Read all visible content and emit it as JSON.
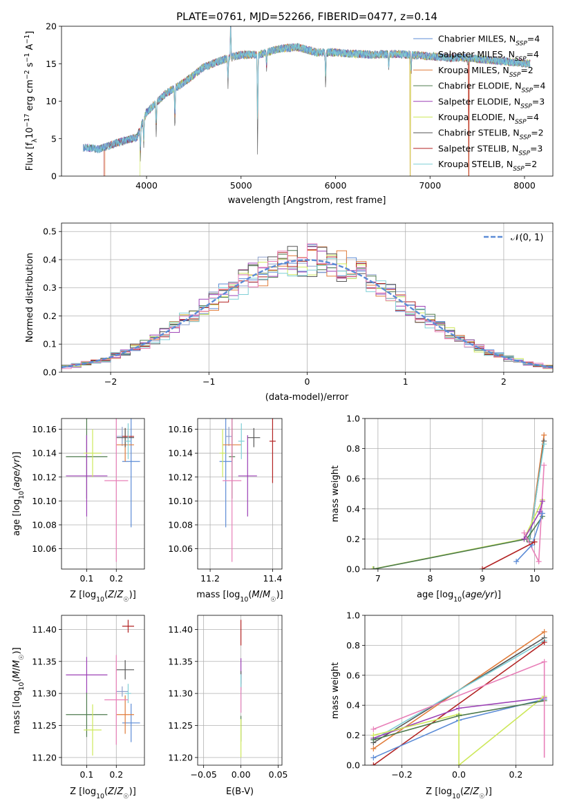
{
  "figure": {
    "title": "PLATE=0761, MJD=52266, FIBERID=0477, z=0.14"
  },
  "colors": {
    "Chabrier MILES": "#5b8bd6",
    "Salpeter MILES": "#8da0cb",
    "Kroupa MILES": "#e07b39",
    "Chabrier ELODIE": "#4d7a4d",
    "Salpeter ELODIE": "#9b3fb5",
    "Kroupa ELODIE": "#cde85a",
    "Chabrier STELIB": "#555555",
    "Salpeter STELIB": "#b22222",
    "Kroupa STELIB": "#7ecfd6",
    "pink": "#e87fb8",
    "normal": "#5b8bd6"
  },
  "chart_data": [
    {
      "id": "spectrum",
      "type": "line",
      "title": "PLATE=0761, MJD=52266, FIBERID=0477, z=0.14",
      "xlabel": "wavelength [Angstrom, rest frame]",
      "ylabel": "Flux [f_λ 10^-17 erg cm^-2 s^-1 A^-1]",
      "xlim": [
        3100,
        8300
      ],
      "ylim": [
        0,
        20
      ],
      "xticks": [
        4000,
        5000,
        6000,
        7000,
        8000
      ],
      "yticks": [
        0,
        5,
        10,
        15,
        20
      ],
      "legend_position": "upper-right",
      "series": [
        {
          "name": "Chabrier MILES, N_SSP=4",
          "legend_main": "Chabrier MILES, N",
          "legend_sub": "SSP",
          "legend_tail": "=4"
        },
        {
          "name": "Salpeter MILES, N_SSP=4",
          "legend_main": "Salpeter MILES, N",
          "legend_sub": "SSP",
          "legend_tail": "=4"
        },
        {
          "name": "Kroupa MILES, N_SSP=2",
          "legend_main": "Kroupa MILES, N",
          "legend_sub": "SSP",
          "legend_tail": "=2"
        },
        {
          "name": "Chabrier ELODIE, N_SSP=4",
          "legend_main": "Chabrier ELODIE, N",
          "legend_sub": "SSP",
          "legend_tail": "=4"
        },
        {
          "name": "Salpeter ELODIE, N_SSP=3",
          "legend_main": "Salpeter ELODIE, N",
          "legend_sub": "SSP",
          "legend_tail": "=3"
        },
        {
          "name": "Kroupa ELODIE, N_SSP=4",
          "legend_main": "Kroupa ELODIE, N",
          "legend_sub": "SSP",
          "legend_tail": "=4"
        },
        {
          "name": "Chabrier STELIB, N_SSP=2",
          "legend_main": "Chabrier STELIB, N",
          "legend_sub": "SSP",
          "legend_tail": "=2"
        },
        {
          "name": "Salpeter STELIB, N_SSP=3",
          "legend_main": "Salpeter STELIB, N",
          "legend_sub": "SSP",
          "legend_tail": "=3"
        },
        {
          "name": "Kroupa STELIB, N_SSP=2",
          "legend_main": "Kroupa STELIB, N",
          "legend_sub": "SSP",
          "legend_tail": "=2"
        }
      ],
      "continuum": [
        [
          3330,
          3.8
        ],
        [
          3500,
          3.6
        ],
        [
          3700,
          4.5
        ],
        [
          3900,
          5.2
        ],
        [
          4000,
          8.5
        ],
        [
          4200,
          11.0
        ],
        [
          4400,
          12.5
        ],
        [
          4600,
          14.5
        ],
        [
          4800,
          15.5
        ],
        [
          5000,
          16.2
        ],
        [
          5200,
          16.2
        ],
        [
          5400,
          17.0
        ],
        [
          5600,
          17.2
        ],
        [
          5800,
          16.5
        ],
        [
          6000,
          16.5
        ],
        [
          6200,
          16.3
        ],
        [
          6400,
          16.2
        ],
        [
          6600,
          16.3
        ],
        [
          6800,
          16.2
        ],
        [
          7000,
          16.0
        ],
        [
          7200,
          15.8
        ],
        [
          7400,
          15.8
        ],
        [
          7600,
          15.5
        ],
        [
          7800,
          15.3
        ],
        [
          8050,
          15.0
        ]
      ],
      "absorption_features": [
        [
          3935,
          3.0
        ],
        [
          3970,
          2.5
        ],
        [
          4102,
          3.0
        ],
        [
          4300,
          3.5
        ],
        [
          4861,
          2.5
        ],
        [
          4890,
          -4.0
        ],
        [
          5175,
          8.5
        ],
        [
          5270,
          1.5
        ],
        [
          5895,
          3.0
        ],
        [
          6563,
          1.5
        ],
        [
          6800,
          2.0
        ],
        [
          7400,
          0.5
        ]
      ],
      "range_start": {
        "Kroupa MILES": 3560,
        "Kroupa ELODIE": 3930,
        "Salpeter STELIB": 3550
      },
      "dropouts": [
        [
          6790,
          0
        ],
        [
          7410,
          0
        ]
      ]
    },
    {
      "id": "residuals",
      "type": "histogram",
      "xlabel": "(data-model)/error",
      "ylabel": "Normed distribution",
      "xlim": [
        -2.5,
        2.5
      ],
      "ylim": [
        0,
        0.53
      ],
      "xticks": [
        -2,
        -1,
        0,
        1,
        2
      ],
      "yticks": [
        0.0,
        0.1,
        0.2,
        0.3,
        0.4,
        0.5
      ],
      "legend_label": "𝒩(0, 1)",
      "bin_width": 0.1,
      "series_colors": [
        "#5b8bd6",
        "#8da0cb",
        "#e07b39",
        "#4d7a4d",
        "#9b3fb5",
        "#cde85a",
        "#555555",
        "#b22222",
        "#7ecfd6",
        "#e87fb8"
      ],
      "normal_curve": {
        "mean": 0,
        "sigma": 1
      }
    },
    {
      "id": "age-vs-Z",
      "type": "scatter",
      "xlabel": "Z [log10(Z/Z☉)]",
      "ylabel": "age  [log10(age/yr)]",
      "xlim": [
        0.015,
        0.295
      ],
      "ylim": [
        10.043,
        10.169
      ],
      "xticks": [
        0.1,
        0.2
      ],
      "yticks": [
        10.06,
        10.08,
        10.1,
        10.12,
        10.14,
        10.16
      ],
      "points": [
        {
          "c": "Chabrier MILES",
          "x": 0.25,
          "y": 10.133,
          "ex": 0.03,
          "ey": 0.055
        },
        {
          "c": "Salpeter MILES",
          "x": 0.22,
          "y": 10.154,
          "ex": 0.02,
          "ey": 0.008
        },
        {
          "c": "Kroupa MILES",
          "x": 0.23,
          "y": 10.147,
          "ex": 0.03,
          "ey": 0.014
        },
        {
          "c": "Chabrier ELODIE",
          "x": 0.1,
          "y": 10.137,
          "ex": 0.07,
          "ey": 0.035
        },
        {
          "c": "Salpeter ELODIE",
          "x": 0.1,
          "y": 10.121,
          "ex": 0.07,
          "ey": 0.034
        },
        {
          "c": "Kroupa ELODIE",
          "x": 0.12,
          "y": 10.14,
          "ex": 0.03,
          "ey": 0.02
        },
        {
          "c": "Chabrier STELIB",
          "x": 0.23,
          "y": 10.153,
          "ex": 0.03,
          "ey": 0.008
        },
        {
          "c": "Salpeter STELIB",
          "x": 0.24,
          "y": 10.154,
          "ex": 0.02,
          "ey": 0.005
        },
        {
          "c": "Kroupa STELIB",
          "x": 0.24,
          "y": 10.15,
          "ex": 0.01,
          "ey": 0.015
        },
        {
          "c": "pink",
          "x": 0.2,
          "y": 10.117,
          "ex": 0.04,
          "ey": 0.068
        }
      ]
    },
    {
      "id": "age-vs-mass",
      "type": "scatter",
      "xlabel": "mass [log10(M/M☉)]",
      "ylabel": "",
      "xlim": [
        11.16,
        11.43
      ],
      "ylim": [
        10.043,
        10.169
      ],
      "xticks": [
        11.2,
        11.4
      ],
      "yticks": [
        10.06,
        10.08,
        10.1,
        10.12,
        10.14,
        10.16
      ],
      "points": [
        {
          "c": "Chabrier MILES",
          "x": 11.25,
          "y": 10.133,
          "ex": 0.02,
          "ey": 0.055
        },
        {
          "c": "Salpeter MILES",
          "x": 11.26,
          "y": 10.154,
          "ex": 0.01,
          "ey": 0.008
        },
        {
          "c": "Kroupa MILES",
          "x": 11.27,
          "y": 10.147,
          "ex": 0.03,
          "ey": 0.014
        },
        {
          "c": "Chabrier ELODIE",
          "x": 11.27,
          "y": 10.137,
          "ex": 0.01,
          "ey": 0.035
        },
        {
          "c": "Salpeter ELODIE",
          "x": 11.32,
          "y": 10.121,
          "ex": 0.03,
          "ey": 0.034
        },
        {
          "c": "Kroupa ELODIE",
          "x": 11.24,
          "y": 10.14,
          "ex": 0.01,
          "ey": 0.02
        },
        {
          "c": "Chabrier STELIB",
          "x": 11.34,
          "y": 10.153,
          "ex": 0.02,
          "ey": 0.008
        },
        {
          "c": "Salpeter STELIB",
          "x": 11.4,
          "y": 10.15,
          "ex": 0.01,
          "ey": 0.035
        },
        {
          "c": "Kroupa STELIB",
          "x": 11.3,
          "y": 10.15,
          "ex": 0.01,
          "ey": 0.015
        },
        {
          "c": "pink",
          "x": 11.27,
          "y": 10.117,
          "ex": 0.03,
          "ey": 0.068
        }
      ]
    },
    {
      "id": "weight-vs-age",
      "type": "line",
      "xlabel": "age  [log10(age/yr)]",
      "ylabel": "mass weight",
      "xlim": [
        6.75,
        10.35
      ],
      "ylim": [
        0,
        1
      ],
      "xticks": [
        7,
        8,
        9,
        10
      ],
      "yticks": [
        0.0,
        0.2,
        0.4,
        0.6,
        0.8,
        1.0
      ],
      "series": [
        {
          "c": "Kroupa MILES",
          "pts": [
            [
              9.9,
              0.2
            ],
            [
              10.18,
              0.89
            ]
          ]
        },
        {
          "c": "Chabrier STELIB",
          "pts": [
            [
              9.9,
              0.18
            ],
            [
              10.18,
              0.85
            ]
          ]
        },
        {
          "c": "Kroupa STELIB",
          "pts": [
            [
              9.9,
              0.2
            ],
            [
              10.18,
              0.83
            ]
          ]
        },
        {
          "c": "Kroupa ELODIE",
          "pts": [
            [
              6.9,
              0.0
            ],
            [
              9.8,
              0.2
            ],
            [
              10.15,
              0.46
            ]
          ]
        },
        {
          "c": "Chabrier ELODIE",
          "pts": [
            [
              6.92,
              0.0
            ],
            [
              9.85,
              0.2
            ],
            [
              10.15,
              0.35
            ]
          ]
        },
        {
          "c": "pink",
          "pts": [
            [
              9.8,
              0.24
            ],
            [
              10.08,
              0.05
            ],
            [
              10.18,
              0.69
            ]
          ]
        },
        {
          "c": "Salpeter ELODIE",
          "pts": [
            [
              9.8,
              0.2
            ],
            [
              10.1,
              0.38
            ],
            [
              10.15,
              0.45
            ]
          ]
        },
        {
          "c": "Chabrier MILES",
          "pts": [
            [
              9.65,
              0.05
            ],
            [
              9.95,
              0.16
            ],
            [
              10.15,
              0.37
            ]
          ]
        },
        {
          "c": "Salpeter STELIB",
          "pts": [
            [
              9.0,
              0.0
            ],
            [
              10.0,
              0.18
            ]
          ]
        }
      ]
    },
    {
      "id": "mass-vs-Z",
      "type": "scatter",
      "xlabel": "Z [log10(Z/Z☉)]",
      "ylabel": "mass [log10(M/M☉)]",
      "xlim": [
        0.015,
        0.295
      ],
      "ylim": [
        11.188,
        11.422
      ],
      "xticks": [
        0.1,
        0.2
      ],
      "yticks": [
        11.2,
        11.25,
        11.3,
        11.35,
        11.4
      ],
      "points": [
        {
          "c": "Chabrier MILES",
          "x": 0.25,
          "y": 11.254,
          "ex": 0.03,
          "ey": 0.03
        },
        {
          "c": "Salpeter MILES",
          "x": 0.22,
          "y": 11.303,
          "ex": 0.02,
          "ey": 0.008
        },
        {
          "c": "Kroupa MILES",
          "x": 0.23,
          "y": 11.267,
          "ex": 0.03,
          "ey": 0.03
        },
        {
          "c": "Chabrier ELODIE",
          "x": 0.1,
          "y": 11.267,
          "ex": 0.07,
          "ey": 0.035
        },
        {
          "c": "Salpeter ELODIE",
          "x": 0.1,
          "y": 11.329,
          "ex": 0.07,
          "ey": 0.028
        },
        {
          "c": "Kroupa ELODIE",
          "x": 0.12,
          "y": 11.243,
          "ex": 0.03,
          "ey": 0.04
        },
        {
          "c": "Chabrier STELIB",
          "x": 0.23,
          "y": 11.337,
          "ex": 0.03,
          "ey": 0.015
        },
        {
          "c": "Salpeter STELIB",
          "x": 0.24,
          "y": 11.405,
          "ex": 0.02,
          "ey": 0.01
        },
        {
          "c": "Kroupa STELIB",
          "x": 0.24,
          "y": 11.3,
          "ex": 0.01,
          "ey": 0.015
        },
        {
          "c": "pink",
          "x": 0.2,
          "y": 11.29,
          "ex": 0.04,
          "ey": 0.07
        }
      ]
    },
    {
      "id": "mass-vs-ebv",
      "type": "scatter",
      "xlabel": "E(B-V)",
      "ylabel": "",
      "xlim": [
        -0.058,
        0.055
      ],
      "ylim": [
        11.188,
        11.422
      ],
      "xticks": [
        -0.05,
        0.0,
        0.05
      ],
      "xticklabels": [
        "−0.05",
        "0.00",
        "0.05"
      ],
      "yticks": [
        11.2,
        11.25,
        11.3,
        11.35,
        11.4
      ],
      "points": [
        {
          "c": "Salpeter STELIB",
          "x": 0,
          "y": 11.395,
          "ex": 0,
          "ey": 0.02
        },
        {
          "c": "Salpeter ELODIE",
          "x": 0,
          "y": 11.335,
          "ex": 0,
          "ey": 0.02
        },
        {
          "c": "Chabrier STELIB",
          "x": 0,
          "y": 11.32,
          "ex": 0,
          "ey": 0.015
        },
        {
          "c": "Kroupa STELIB",
          "x": 0,
          "y": 11.3,
          "ex": 0,
          "ey": 0.03
        },
        {
          "c": "pink",
          "x": 0,
          "y": 11.29,
          "ex": 0,
          "ey": 0.02
        },
        {
          "c": "Chabrier ELODIE",
          "x": 0,
          "y": 11.245,
          "ex": 0,
          "ey": 0.02
        },
        {
          "c": "Kroupa ELODIE",
          "x": 0,
          "y": 11.23,
          "ex": 0,
          "ey": 0.03
        }
      ]
    },
    {
      "id": "weight-vs-Z",
      "type": "line",
      "xlabel": "Z [log10(Z/Z☉)]",
      "ylabel": "mass weight",
      "xlim": [
        -0.33,
        0.33
      ],
      "ylim": [
        0,
        1
      ],
      "xticks": [
        -0.2,
        0.0,
        0.2
      ],
      "xticklabels": [
        "−0.2",
        "0.0",
        "0.2"
      ],
      "yticks": [
        0.0,
        0.2,
        0.4,
        0.6,
        0.8,
        1.0
      ],
      "series": [
        {
          "c": "Kroupa MILES",
          "pts": [
            [
              -0.3,
              0.11
            ],
            [
              0.3,
              0.89
            ]
          ]
        },
        {
          "c": "Chabrier STELIB",
          "pts": [
            [
              -0.3,
              0.15
            ],
            [
              0.3,
              0.85
            ]
          ]
        },
        {
          "c": "Kroupa STELIB",
          "pts": [
            [
              -0.3,
              0.17
            ],
            [
              0.3,
              0.83
            ]
          ]
        },
        {
          "c": "Salpeter STELIB",
          "pts": [
            [
              -0.3,
              0.0
            ],
            [
              0.3,
              0.82
            ]
          ]
        },
        {
          "c": "pink",
          "pts": [
            [
              -0.3,
              0.24
            ],
            [
              0.3,
              0.69
            ]
          ]
        },
        {
          "c": "Salpeter ELODIE",
          "pts": [
            [
              -0.3,
              0.18
            ],
            [
              0.0,
              0.38
            ],
            [
              0.3,
              0.45
            ]
          ]
        },
        {
          "c": "Chabrier MILES",
          "pts": [
            [
              -0.3,
              0.05
            ],
            [
              0.0,
              0.3
            ],
            [
              0.3,
              0.44
            ]
          ]
        },
        {
          "c": "Kroupa ELODIE",
          "pts": [
            [
              -0.3,
              0.2
            ],
            [
              0.0,
              0.34
            ],
            [
              0.0,
              0.0
            ],
            [
              0.3,
              0.46
            ]
          ]
        },
        {
          "c": "Chabrier ELODIE",
          "pts": [
            [
              -0.3,
              0.17
            ],
            [
              0.0,
              0.33
            ],
            [
              0.3,
              0.43
            ]
          ]
        }
      ],
      "pink_vertical": {
        "x": 0.3,
        "y0": 0.05,
        "y1": 0.69
      }
    }
  ]
}
